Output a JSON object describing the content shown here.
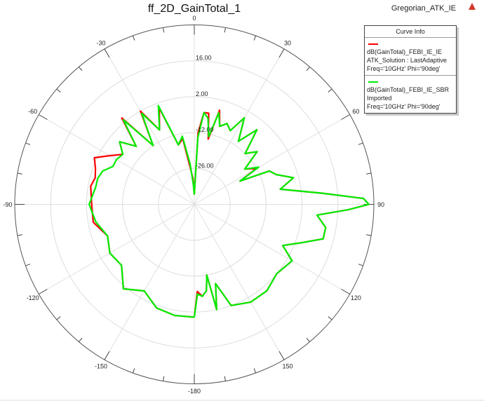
{
  "header": {
    "title": "ff_2D_GainTotal_1",
    "project": "Gregorian_ATK_IE",
    "warning_icon": "warning-triangle-icon"
  },
  "legend": {
    "title": "Curve Info",
    "entries": [
      {
        "name": "dB(GainTotal)_FEBI_IE_IE",
        "line2": "ATK_Solution : LastAdaptive",
        "line3": "Freq='10GHz' Phi='90deg'",
        "color": "#ff0000"
      },
      {
        "name": "dB(GainTotal)_FEBI_IE_SBR",
        "line2": "Imported",
        "line3": "Freq='10GHz' Phi='90deg'",
        "color": "#00ee00"
      }
    ]
  },
  "chart_data": {
    "type": "polar_line",
    "title": "ff_2D_GainTotal_1",
    "angle_unit": "deg",
    "angle_direction": "clockwise",
    "angle_zero": "top",
    "angle_tick_labels": [
      "0",
      "30",
      "60",
      "90",
      "120",
      "150",
      "-180",
      "-150",
      "-120",
      "-90",
      "-60",
      "-30"
    ],
    "angle_ticks_deg": [
      0,
      30,
      60,
      90,
      120,
      150,
      180,
      -150,
      -120,
      -90,
      -60,
      -30
    ],
    "minor_tick_step_deg": 10,
    "radial_range_db": [
      -40,
      30
    ],
    "radial_tick_labels": [
      "16.00",
      "2.00",
      "-12.00",
      "-26.00"
    ],
    "radial_ticks_db": [
      16,
      2,
      -12,
      -26
    ],
    "grid": true,
    "legend_position": "upper-right",
    "angles_deg": [
      -180,
      -170,
      -160,
      -150,
      -140,
      -130,
      -120,
      -110,
      -100,
      -90,
      -80,
      -75,
      -70,
      -65,
      -60,
      -55,
      -50,
      -45,
      -40,
      -35,
      -30,
      -25,
      -20,
      -15,
      -10,
      -6,
      -3,
      0,
      3,
      6,
      9,
      12,
      15,
      18,
      22,
      26,
      30,
      35,
      40,
      45,
      50,
      55,
      60,
      63,
      66,
      70,
      75,
      80,
      85,
      88,
      90,
      92,
      95,
      100,
      105,
      110,
      115,
      120,
      130,
      140,
      150,
      160,
      165,
      168,
      170,
      172,
      175,
      178,
      180
    ],
    "series": [
      {
        "name": "dB(GainTotal)_FEBI_IE_IE",
        "color": "#ff0000",
        "values": [
          4,
          4,
          3,
          -1,
          3,
          -3,
          -2,
          -4,
          0,
          0,
          1,
          0,
          1,
          3,
          -2,
          -6,
          -2,
          -8,
          4,
          -12,
          2,
          -8,
          0,
          -16,
          -14,
          -26,
          -30,
          -36,
          -12,
          -4,
          -4,
          -14,
          -2,
          -8,
          -6,
          -8,
          -1,
          -10,
          -2,
          -12,
          -8,
          -16,
          -12,
          -20,
          -8,
          -6,
          0,
          -6,
          10,
          26,
          28,
          20,
          8,
          12,
          12,
          4,
          -2,
          4,
          2,
          4,
          4,
          2,
          -8,
          2,
          -12,
          -6,
          -4,
          -6,
          4
        ]
      },
      {
        "name": "dB(GainTotal)_FEBI_IE_SBR",
        "color": "#00ee00",
        "values": [
          4,
          4,
          3,
          -1,
          3,
          -3,
          -2,
          -4,
          -1,
          1,
          -1,
          -1,
          -2,
          -5,
          -5,
          -6,
          -2,
          -8,
          3,
          -12,
          1,
          -8,
          1,
          -16,
          -13,
          -24,
          -32,
          -36,
          -14,
          -4,
          -6,
          -13,
          -3,
          -8,
          -6,
          -8,
          -1,
          -10,
          -2,
          -12,
          -8,
          -16,
          -11,
          -20,
          -8,
          -6,
          0,
          -6,
          10,
          26,
          28,
          20,
          8,
          12,
          12,
          4,
          -2,
          4,
          2,
          4,
          4,
          2,
          -8,
          2,
          -12,
          -6,
          -4,
          -5,
          4
        ]
      }
    ]
  }
}
